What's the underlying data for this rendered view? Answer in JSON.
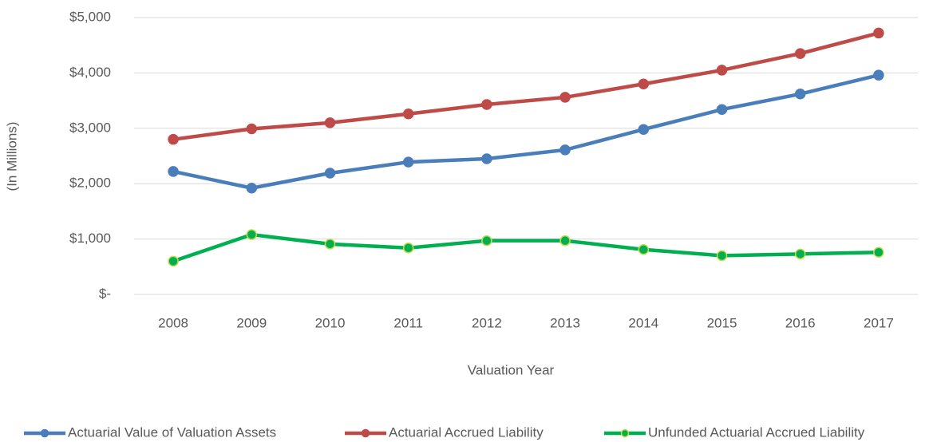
{
  "chart_data": {
    "type": "line",
    "x_label": "Valuation Year",
    "y_label": "(In Millions)",
    "categories": [
      "2008",
      "2009",
      "2010",
      "2011",
      "2012",
      "2013",
      "2014",
      "2015",
      "2016",
      "2017"
    ],
    "series": [
      {
        "name": "Actuarial Value of Valuation Assets",
        "color": "#4a7ebb",
        "marker_stroke": "#4a7ebb",
        "values": [
          2220,
          1920,
          2190,
          2390,
          2450,
          2610,
          2980,
          3340,
          3620,
          3960
        ]
      },
      {
        "name": "Actuarial Accrued Liability",
        "color": "#be4b48",
        "marker_stroke": "#be4b48",
        "values": [
          2800,
          2990,
          3100,
          3260,
          3430,
          3560,
          3800,
          4050,
          4350,
          4720
        ]
      },
      {
        "name": "Unfunded Actuarial Accrued Liability",
        "color": "#00b050",
        "marker_stroke": "#c5d84a",
        "values": [
          600,
          1080,
          910,
          840,
          970,
          970,
          810,
          700,
          730,
          760
        ]
      }
    ],
    "ylim": [
      0,
      5000
    ],
    "yticks": [
      {
        "value": 0,
        "label": "$-"
      },
      {
        "value": 1000,
        "label": "$1,000"
      },
      {
        "value": 2000,
        "label": "$2,000"
      },
      {
        "value": 3000,
        "label": "$3,000"
      },
      {
        "value": 4000,
        "label": "$4,000"
      },
      {
        "value": 5000,
        "label": "$5,000"
      }
    ],
    "grid": true,
    "legend": "bottom"
  }
}
